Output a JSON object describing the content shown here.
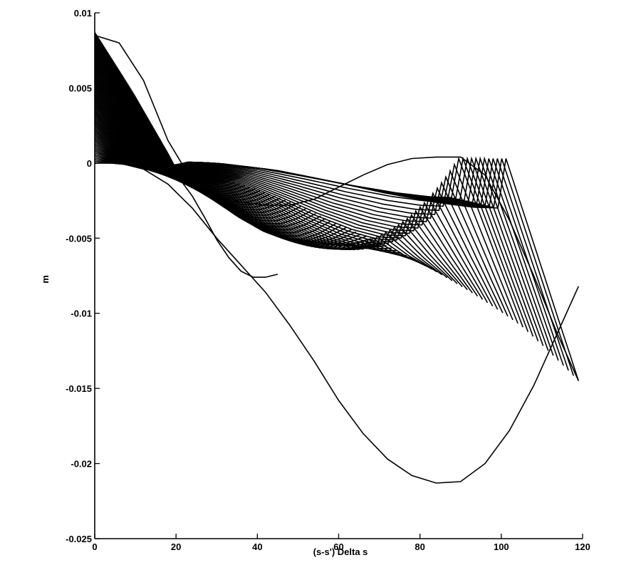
{
  "chart_data": {
    "type": "line",
    "title": "",
    "xlabel": "(s-s') Delta s",
    "ylabel": "m",
    "xlim": [
      0,
      120
    ],
    "ylim": [
      -0.025,
      0.01
    ],
    "xticks": [
      0,
      20,
      40,
      60,
      80,
      100,
      120
    ],
    "xtick_labels": [
      "0",
      "20",
      "40",
      "60",
      "80",
      "100",
      "120"
    ],
    "yticks": [
      0.01,
      0.005,
      0,
      -0.005,
      -0.01,
      -0.015,
      -0.02,
      -0.025
    ],
    "ytick_labels": [
      "0.01",
      "0.005",
      "0",
      "-0.005",
      "-0.01",
      "-0.015",
      "-0.02",
      "-0.025"
    ],
    "grid": false,
    "legend": "none",
    "line_color": "#000000",
    "series": [
      {
        "x": [
          0,
          3,
          6,
          9,
          12,
          15,
          18,
          21,
          24,
          27,
          30,
          33,
          36,
          39,
          42,
          45
        ],
        "y": [
          0,
          3e-05,
          0.0001,
          0.0002,
          0.0002,
          0.0001,
          -0.0003,
          -0.0011,
          -0.0022,
          -0.0036,
          -0.0051,
          -0.0063,
          -0.0072,
          -0.0076,
          -0.0076,
          -0.0074
        ]
      },
      {
        "x": [
          0,
          6,
          12,
          18,
          24,
          30,
          36,
          42,
          48,
          54,
          60,
          66,
          72,
          78,
          84,
          90,
          96,
          102,
          108,
          114,
          119
        ],
        "y": [
          0.0085,
          0.008,
          0.0055,
          0.0015,
          -0.0012,
          -0.0022,
          -0.0026,
          -0.0028,
          -0.0028,
          -0.0024,
          -0.0016,
          -0.0008,
          -0.0001,
          0.0003,
          0.0004,
          0.0004,
          -0.0008,
          -0.0038,
          -0.0075,
          -0.0115,
          -0.0145
        ]
      },
      {
        "x": [
          0,
          6,
          12,
          18,
          24,
          30,
          36,
          42,
          48,
          54,
          60,
          66,
          72,
          78,
          84,
          90,
          96,
          102,
          108,
          114,
          119
        ],
        "y": [
          0,
          0,
          -0.0004,
          -0.0014,
          -0.003,
          -0.005,
          -0.0068,
          -0.0086,
          -0.0108,
          -0.0132,
          -0.0158,
          -0.018,
          -0.0197,
          -0.0208,
          -0.0213,
          -0.0212,
          -0.02,
          -0.0178,
          -0.0148,
          -0.0112,
          -0.0082
        ]
      }
    ]
  }
}
